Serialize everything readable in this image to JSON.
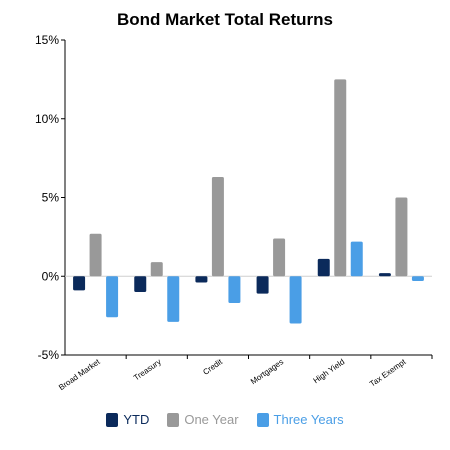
{
  "chart_data": {
    "type": "bar",
    "title": "Bond Market Total Returns",
    "categories": [
      "Broad Market",
      "Treasury",
      "Credit",
      "Mortgages",
      "High Yield",
      "Tax Exempt"
    ],
    "series": [
      {
        "name": "YTD",
        "color": "#0b2a5b",
        "values": [
          -0.9,
          -1.0,
          -0.4,
          -1.1,
          1.1,
          0.2
        ]
      },
      {
        "name": "One Year",
        "color": "#999999",
        "values": [
          2.7,
          0.9,
          6.3,
          2.4,
          12.5,
          5.0
        ]
      },
      {
        "name": "Three Years",
        "color": "#4a9ee6",
        "values": [
          -2.6,
          -2.9,
          -1.7,
          -3.0,
          2.2,
          -0.3
        ]
      }
    ],
    "ylim": [
      -5,
      15
    ],
    "yticks": [
      -5,
      0,
      5,
      10,
      15
    ],
    "ytick_labels": [
      "-5%",
      "0%",
      "5%",
      "10%",
      "15%"
    ],
    "xlabel": "",
    "ylabel": "",
    "grid": false,
    "legend_position": "bottom"
  }
}
